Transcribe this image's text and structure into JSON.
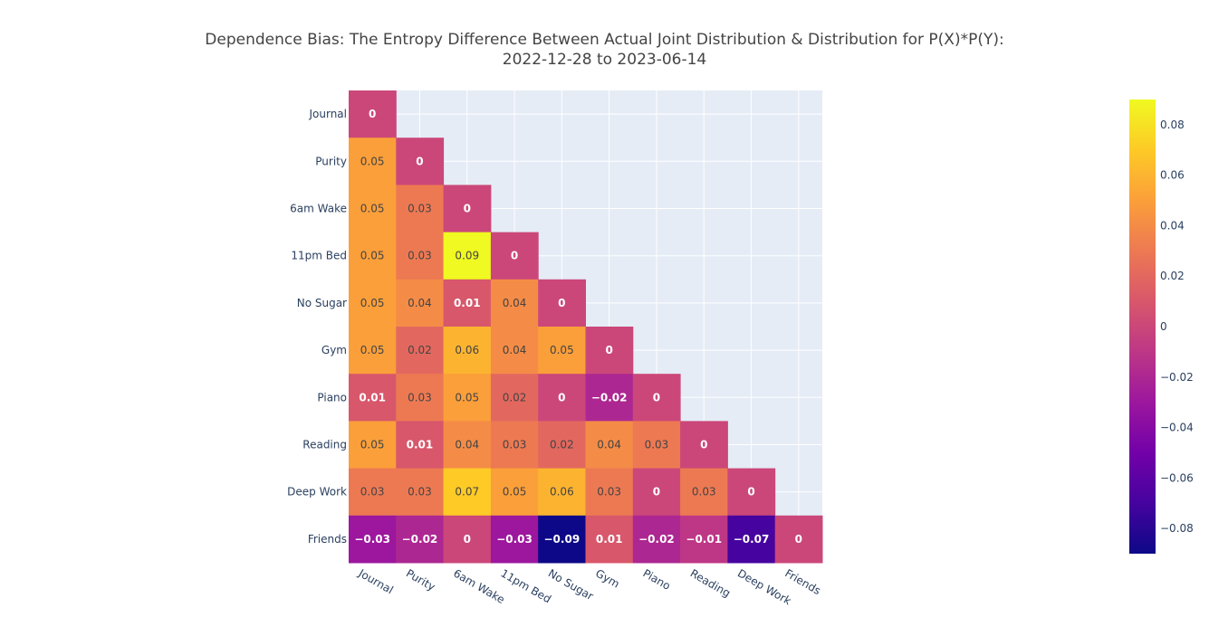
{
  "chart_data": {
    "type": "heatmap",
    "title_line1": "Dependence Bias: The Entropy Difference Between Actual Joint Distribution & Distribution for P(X)*P(Y):",
    "title_line2": "2022-12-28 to 2023-06-14",
    "x_categories": [
      "Journal",
      "Purity",
      "6am Wake",
      "11pm Bed",
      "No Sugar",
      "Gym",
      "Piano",
      "Reading",
      "Deep Work",
      "Friends"
    ],
    "y_categories": [
      "Journal",
      "Purity",
      "6am Wake",
      "11pm Bed",
      "No Sugar",
      "Gym",
      "Piano",
      "Reading",
      "Deep Work",
      "Friends"
    ],
    "z": [
      [
        0,
        null,
        null,
        null,
        null,
        null,
        null,
        null,
        null,
        null
      ],
      [
        0.05,
        0,
        null,
        null,
        null,
        null,
        null,
        null,
        null,
        null
      ],
      [
        0.05,
        0.03,
        0,
        null,
        null,
        null,
        null,
        null,
        null,
        null
      ],
      [
        0.05,
        0.03,
        0.09,
        0,
        null,
        null,
        null,
        null,
        null,
        null
      ],
      [
        0.05,
        0.04,
        0.01,
        0.04,
        0,
        null,
        null,
        null,
        null,
        null
      ],
      [
        0.05,
        0.02,
        0.06,
        0.04,
        0.05,
        0,
        null,
        null,
        null,
        null
      ],
      [
        0.01,
        0.03,
        0.05,
        0.02,
        0,
        -0.02,
        0,
        null,
        null,
        null
      ],
      [
        0.05,
        0.01,
        0.04,
        0.03,
        0.02,
        0.04,
        0.03,
        0,
        null,
        null
      ],
      [
        0.03,
        0.03,
        0.07,
        0.05,
        0.06,
        0.03,
        0,
        0.03,
        0,
        null
      ],
      [
        -0.03,
        -0.02,
        0,
        -0.03,
        -0.09,
        0.01,
        -0.02,
        -0.01,
        -0.07,
        0
      ]
    ],
    "labels": [
      [
        "0",
        null,
        null,
        null,
        null,
        null,
        null,
        null,
        null,
        null
      ],
      [
        "0.05",
        "0",
        null,
        null,
        null,
        null,
        null,
        null,
        null,
        null
      ],
      [
        "0.05",
        "0.03",
        "0",
        null,
        null,
        null,
        null,
        null,
        null,
        null
      ],
      [
        "0.05",
        "0.03",
        "0.09",
        "0",
        null,
        null,
        null,
        null,
        null,
        null
      ],
      [
        "0.05",
        "0.04",
        "0.01",
        "0.04",
        "0",
        null,
        null,
        null,
        null,
        null
      ],
      [
        "0.05",
        "0.02",
        "0.06",
        "0.04",
        "0.05",
        "0",
        null,
        null,
        null,
        null
      ],
      [
        "0.01",
        "0.03",
        "0.05",
        "0.02",
        "0",
        "−0.02",
        "0",
        null,
        null,
        null
      ],
      [
        "0.05",
        "0.01",
        "0.04",
        "0.03",
        "0.02",
        "0.04",
        "0.03",
        "0",
        null,
        null
      ],
      [
        "0.03",
        "0.03",
        "0.07",
        "0.05",
        "0.06",
        "0.03",
        "0",
        "0.03",
        "0",
        null
      ],
      [
        "−0.03",
        "−0.02",
        "0",
        "−0.03",
        "−0.09",
        "0.01",
        "−0.02",
        "−0.01",
        "−0.07",
        "0"
      ]
    ],
    "zmin": -0.09,
    "zmax": 0.09,
    "colorscale": "plasma",
    "colorbar_ticks": [
      0.08,
      0.06,
      0.04,
      0.02,
      0,
      -0.02,
      -0.04,
      -0.06,
      -0.08
    ],
    "colorbar_tick_labels": [
      "0.08",
      "0.06",
      "0.04",
      "0.02",
      "0",
      "−0.02",
      "−0.04",
      "−0.06",
      "−0.08"
    ],
    "plot_bgcolor": "#e5ecf6",
    "grid": true,
    "x_tick_angle": 30
  }
}
